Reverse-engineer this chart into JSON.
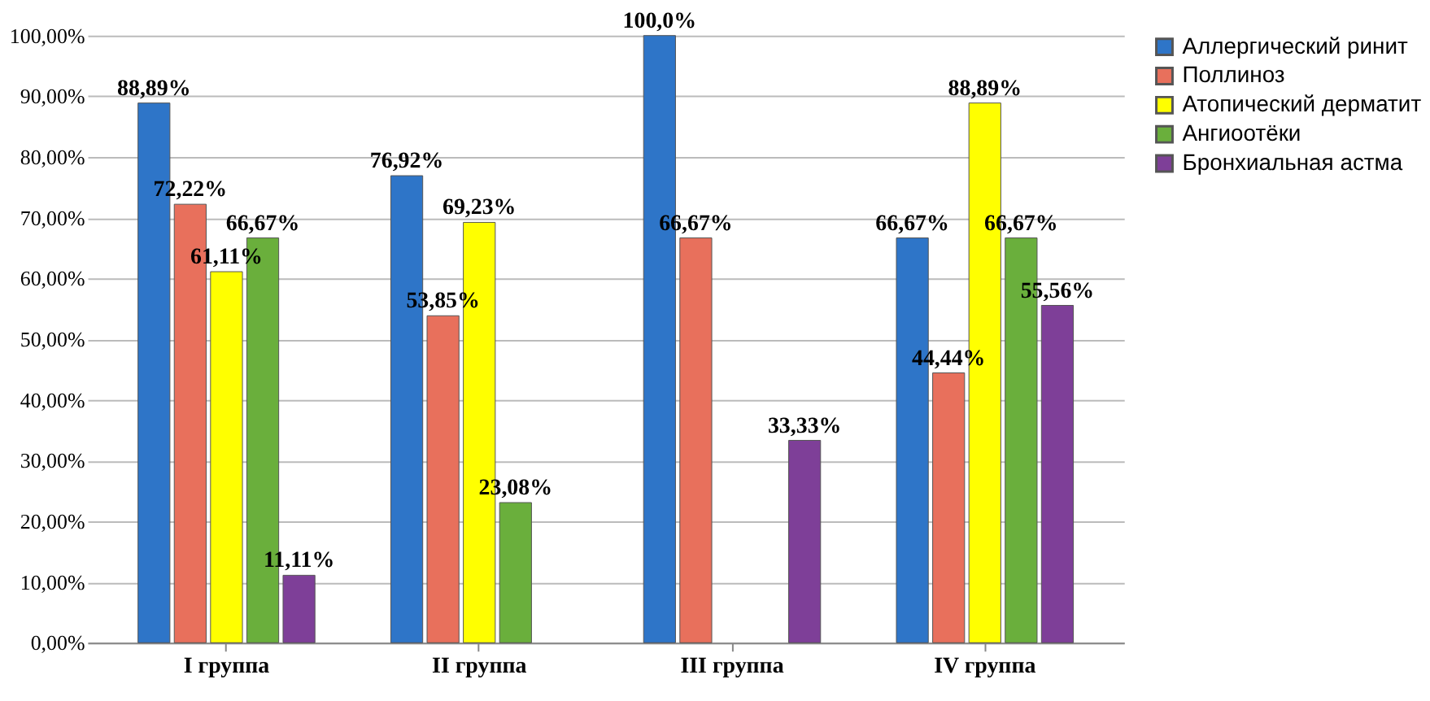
{
  "chart_data": {
    "type": "bar",
    "categories": [
      "I группа",
      "II группа",
      "III группа",
      "IV группа"
    ],
    "series": [
      {
        "name": "Аллергический ринит",
        "color": "#2e75c8",
        "values": [
          88.89,
          76.92,
          100.0,
          66.67
        ],
        "value_labels": [
          "88,89%",
          "76,92%",
          "100,0%",
          "66,67%"
        ]
      },
      {
        "name": "Поллиноз",
        "color": "#e8705c",
        "values": [
          72.22,
          53.85,
          66.67,
          44.44
        ],
        "value_labels": [
          "72,22%",
          "53,85%",
          "66,67%",
          "44,44%"
        ]
      },
      {
        "name": "Атопический дерматит",
        "color": "#ffff00",
        "values": [
          61.11,
          69.23,
          null,
          88.89
        ],
        "value_labels": [
          "61,11%",
          "69,23%",
          null,
          "88,89%"
        ]
      },
      {
        "name": "Ангиоотёки",
        "color": "#6aaf3c",
        "values": [
          66.67,
          23.08,
          null,
          66.67
        ],
        "value_labels": [
          "66,67%",
          "23,08%",
          null,
          "66,67%"
        ]
      },
      {
        "name": "Бронхиальная астма",
        "color": "#7e3f98",
        "values": [
          11.11,
          null,
          33.33,
          55.56
        ],
        "value_labels": [
          "11,11%",
          null,
          "33,33%",
          "55,56%"
        ]
      }
    ],
    "ylim": [
      0,
      100
    ],
    "yticks": [
      {
        "value": 0,
        "label": "0,00%"
      },
      {
        "value": 10,
        "label": "10,00%"
      },
      {
        "value": 20,
        "label": "20,00%"
      },
      {
        "value": 30,
        "label": "30,00%"
      },
      {
        "value": 40,
        "label": "40,00%"
      },
      {
        "value": 50,
        "label": "50,00%"
      },
      {
        "value": 60,
        "label": "60,00%"
      },
      {
        "value": 70,
        "label": "70,00%"
      },
      {
        "value": 80,
        "label": "80,00%"
      },
      {
        "value": 90,
        "label": "90,00%"
      },
      {
        "value": 100,
        "label": "100,00%"
      }
    ],
    "grid": "y",
    "legend": "right"
  }
}
